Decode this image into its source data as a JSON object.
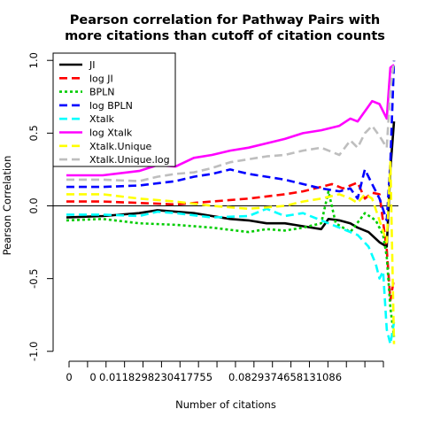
{
  "chart_data": {
    "type": "line",
    "title_line1": "Pearson correlation for Pathway Pairs with",
    "title_line2": "more citations than cutoff of citation counts",
    "xlabel": "Number of citations",
    "ylabel": "Pearson Correlation",
    "ylim": [
      -1.0,
      1.0
    ],
    "yticks": [
      "-1.0",
      "-0.5",
      "0.0",
      "0.5",
      "1.0"
    ],
    "ytick_values": [
      -1.0,
      -0.5,
      0.0,
      0.5,
      1.0
    ],
    "xtick_labels": [
      "0",
      "0",
      "0.0118298230417755",
      "0.0829374658131086"
    ],
    "xtick_label_positions": [
      1,
      8,
      23,
      49
    ],
    "xtick_count": 18,
    "x_index_max": 90,
    "hline": 0,
    "legend_position": "top-left",
    "grid": false,
    "series": [
      {
        "name": "JI",
        "color": "#000000",
        "dash": "solid",
        "points": [
          [
            0,
            -0.08
          ],
          [
            10,
            -0.07
          ],
          [
            20,
            -0.05
          ],
          [
            25,
            -0.03
          ],
          [
            30,
            -0.04
          ],
          [
            35,
            -0.05
          ],
          [
            40,
            -0.07
          ],
          [
            45,
            -0.09
          ],
          [
            50,
            -0.1
          ],
          [
            55,
            -0.12
          ],
          [
            60,
            -0.12
          ],
          [
            65,
            -0.14
          ],
          [
            70,
            -0.16
          ],
          [
            72,
            -0.09
          ],
          [
            75,
            -0.1
          ],
          [
            78,
            -0.12
          ],
          [
            80,
            -0.15
          ],
          [
            83,
            -0.18
          ],
          [
            86,
            -0.25
          ],
          [
            88,
            -0.28
          ],
          [
            89,
            0.25
          ],
          [
            90,
            0.58
          ]
        ]
      },
      {
        "name": "log JI",
        "color": "#ff0000",
        "dash": "dashed",
        "points": [
          [
            0,
            0.03
          ],
          [
            10,
            0.03
          ],
          [
            20,
            0.02
          ],
          [
            30,
            0.01
          ],
          [
            40,
            0.03
          ],
          [
            50,
            0.05
          ],
          [
            60,
            0.08
          ],
          [
            65,
            0.1
          ],
          [
            70,
            0.13
          ],
          [
            73,
            0.15
          ],
          [
            76,
            0.12
          ],
          [
            78,
            0.14
          ],
          [
            80,
            0.16
          ],
          [
            82,
            0.05
          ],
          [
            84,
            0.09
          ],
          [
            86,
            0.08
          ],
          [
            88,
            -0.3
          ],
          [
            89,
            -0.65
          ],
          [
            90,
            -0.5
          ]
        ]
      },
      {
        "name": "BPLN",
        "color": "#00cc00",
        "dash": "dotted",
        "points": [
          [
            0,
            -0.1
          ],
          [
            10,
            -0.09
          ],
          [
            20,
            -0.12
          ],
          [
            30,
            -0.13
          ],
          [
            40,
            -0.15
          ],
          [
            50,
            -0.18
          ],
          [
            55,
            -0.16
          ],
          [
            60,
            -0.17
          ],
          [
            65,
            -0.15
          ],
          [
            70,
            -0.12
          ],
          [
            72,
            0.1
          ],
          [
            74,
            -0.12
          ],
          [
            78,
            -0.18
          ],
          [
            82,
            -0.05
          ],
          [
            85,
            -0.1
          ],
          [
            87,
            -0.2
          ],
          [
            88,
            -0.35
          ],
          [
            89,
            -0.7
          ],
          [
            90,
            -0.9
          ]
        ]
      },
      {
        "name": "log BPLN",
        "color": "#0000ff",
        "dash": "dashed",
        "points": [
          [
            0,
            0.13
          ],
          [
            10,
            0.13
          ],
          [
            20,
            0.14
          ],
          [
            30,
            0.17
          ],
          [
            35,
            0.2
          ],
          [
            40,
            0.22
          ],
          [
            45,
            0.25
          ],
          [
            50,
            0.22
          ],
          [
            55,
            0.2
          ],
          [
            60,
            0.18
          ],
          [
            65,
            0.15
          ],
          [
            70,
            0.12
          ],
          [
            75,
            0.1
          ],
          [
            78,
            0.12
          ],
          [
            80,
            0.05
          ],
          [
            82,
            0.25
          ],
          [
            84,
            0.15
          ],
          [
            86,
            0.05
          ],
          [
            88,
            -0.1
          ],
          [
            89,
            0.3
          ],
          [
            90,
            1.0
          ]
        ]
      },
      {
        "name": "Xtalk",
        "color": "#00ffff",
        "dash": "dashed",
        "points": [
          [
            0,
            -0.06
          ],
          [
            10,
            -0.06
          ],
          [
            20,
            -0.07
          ],
          [
            25,
            -0.04
          ],
          [
            30,
            -0.05
          ],
          [
            40,
            -0.08
          ],
          [
            50,
            -0.07
          ],
          [
            55,
            -0.02
          ],
          [
            60,
            -0.07
          ],
          [
            65,
            -0.05
          ],
          [
            70,
            -0.1
          ],
          [
            75,
            -0.15
          ],
          [
            80,
            -0.2
          ],
          [
            83,
            -0.28
          ],
          [
            85,
            -0.4
          ],
          [
            86,
            -0.5
          ],
          [
            87,
            -0.45
          ],
          [
            88,
            -0.85
          ],
          [
            89,
            -0.95
          ],
          [
            90,
            -0.8
          ]
        ]
      },
      {
        "name": "log Xtalk",
        "color": "#ff00ff",
        "dash": "solid",
        "points": [
          [
            0,
            0.21
          ],
          [
            10,
            0.21
          ],
          [
            20,
            0.24
          ],
          [
            25,
            0.28
          ],
          [
            30,
            0.27
          ],
          [
            35,
            0.33
          ],
          [
            40,
            0.35
          ],
          [
            45,
            0.38
          ],
          [
            50,
            0.4
          ],
          [
            55,
            0.43
          ],
          [
            60,
            0.46
          ],
          [
            65,
            0.5
          ],
          [
            70,
            0.52
          ],
          [
            75,
            0.55
          ],
          [
            78,
            0.6
          ],
          [
            80,
            0.58
          ],
          [
            82,
            0.65
          ],
          [
            84,
            0.72
          ],
          [
            86,
            0.7
          ],
          [
            88,
            0.6
          ],
          [
            89,
            0.95
          ],
          [
            90,
            0.97
          ]
        ]
      },
      {
        "name": "Xtalk.Unique",
        "color": "#ffff00",
        "dash": "dashed",
        "points": [
          [
            0,
            0.08
          ],
          [
            10,
            0.08
          ],
          [
            20,
            0.05
          ],
          [
            30,
            0.03
          ],
          [
            40,
            0.0
          ],
          [
            50,
            -0.02
          ],
          [
            60,
            0.0
          ],
          [
            65,
            0.03
          ],
          [
            70,
            0.05
          ],
          [
            75,
            0.08
          ],
          [
            78,
            0.05
          ],
          [
            80,
            0.02
          ],
          [
            82,
            0.08
          ],
          [
            84,
            0.05
          ],
          [
            86,
            -0.1
          ],
          [
            88,
            -0.25
          ],
          [
            89,
            0.3
          ],
          [
            90,
            -0.95
          ]
        ]
      },
      {
        "name": "Xtalk.Unique.log",
        "color": "#bebebe",
        "dash": "dashed",
        "points": [
          [
            0,
            0.18
          ],
          [
            10,
            0.18
          ],
          [
            20,
            0.17
          ],
          [
            25,
            0.2
          ],
          [
            30,
            0.22
          ],
          [
            35,
            0.23
          ],
          [
            40,
            0.26
          ],
          [
            45,
            0.3
          ],
          [
            50,
            0.32
          ],
          [
            55,
            0.34
          ],
          [
            60,
            0.35
          ],
          [
            65,
            0.38
          ],
          [
            70,
            0.4
          ],
          [
            75,
            0.35
          ],
          [
            78,
            0.45
          ],
          [
            80,
            0.4
          ],
          [
            82,
            0.5
          ],
          [
            84,
            0.55
          ],
          [
            86,
            0.48
          ],
          [
            88,
            0.4
          ],
          [
            89,
            0.8
          ],
          [
            90,
            1.0
          ]
        ]
      }
    ]
  }
}
